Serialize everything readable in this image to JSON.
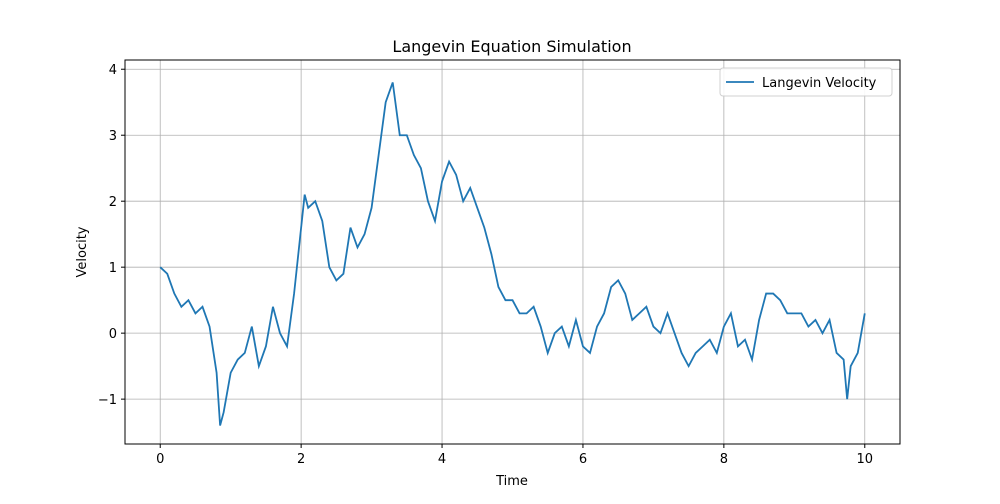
{
  "chart_data": {
    "type": "line",
    "title": "Langevin Equation Simulation",
    "x_label": "Time",
    "y_label": "Velocity",
    "x": [
      0,
      0.1,
      0.2,
      0.3,
      0.4,
      0.5,
      0.6,
      0.7,
      0.8,
      0.85,
      0.9,
      1.0,
      1.1,
      1.2,
      1.3,
      1.4,
      1.5,
      1.6,
      1.7,
      1.8,
      1.9,
      2.0,
      2.05,
      2.1,
      2.2,
      2.3,
      2.4,
      2.5,
      2.6,
      2.7,
      2.8,
      2.9,
      3.0,
      3.1,
      3.2,
      3.3,
      3.4,
      3.5,
      3.6,
      3.7,
      3.8,
      3.9,
      4.0,
      4.1,
      4.2,
      4.3,
      4.4,
      4.5,
      4.6,
      4.7,
      4.8,
      4.9,
      5.0,
      5.1,
      5.2,
      5.3,
      5.4,
      5.5,
      5.6,
      5.7,
      5.8,
      5.9,
      6.0,
      6.1,
      6.2,
      6.3,
      6.4,
      6.5,
      6.6,
      6.7,
      6.8,
      6.9,
      7.0,
      7.1,
      7.2,
      7.3,
      7.4,
      7.5,
      7.6,
      7.7,
      7.8,
      7.9,
      8.0,
      8.1,
      8.2,
      8.3,
      8.4,
      8.5,
      8.6,
      8.7,
      8.8,
      8.9,
      9.0,
      9.1,
      9.2,
      9.3,
      9.4,
      9.5,
      9.6,
      9.7,
      9.75,
      9.8,
      9.9,
      10.0
    ],
    "series": [
      {
        "name": "Langevin Velocity",
        "color": "#1f77b4",
        "values": [
          1.0,
          0.9,
          0.6,
          0.4,
          0.5,
          0.3,
          0.4,
          0.1,
          -0.6,
          -1.4,
          -1.2,
          -0.6,
          -0.4,
          -0.3,
          0.1,
          -0.5,
          -0.2,
          0.4,
          0.0,
          -0.2,
          0.6,
          1.6,
          2.1,
          1.9,
          2.0,
          1.7,
          1.0,
          0.8,
          0.9,
          1.6,
          1.3,
          1.5,
          1.9,
          2.7,
          3.5,
          3.8,
          3.0,
          3.0,
          2.7,
          2.5,
          2.0,
          1.7,
          2.3,
          2.6,
          2.4,
          2.0,
          2.2,
          1.9,
          1.6,
          1.2,
          0.7,
          0.5,
          0.5,
          0.3,
          0.3,
          0.4,
          0.1,
          -0.3,
          0.0,
          0.1,
          -0.2,
          0.2,
          -0.2,
          -0.3,
          0.1,
          0.3,
          0.7,
          0.8,
          0.6,
          0.2,
          0.3,
          0.4,
          0.1,
          0.0,
          0.3,
          0.0,
          -0.3,
          -0.5,
          -0.3,
          -0.2,
          -0.1,
          -0.3,
          0.1,
          0.3,
          -0.2,
          -0.1,
          -0.4,
          0.2,
          0.6,
          0.6,
          0.5,
          0.3,
          0.3,
          0.3,
          0.1,
          0.2,
          0.0,
          0.2,
          -0.3,
          -0.4,
          -1.0,
          -0.5,
          -0.3,
          0.3
        ]
      }
    ],
    "xlim": [
      -0.5,
      10.5
    ],
    "ylim": [
      -1.68,
      4.14
    ],
    "xticks": [
      0,
      2,
      4,
      6,
      8,
      10
    ],
    "yticks": [
      {
        "value": -1,
        "label": "−1"
      },
      0,
      1,
      2,
      3,
      4
    ],
    "grid": true,
    "legend": "upper-right"
  }
}
